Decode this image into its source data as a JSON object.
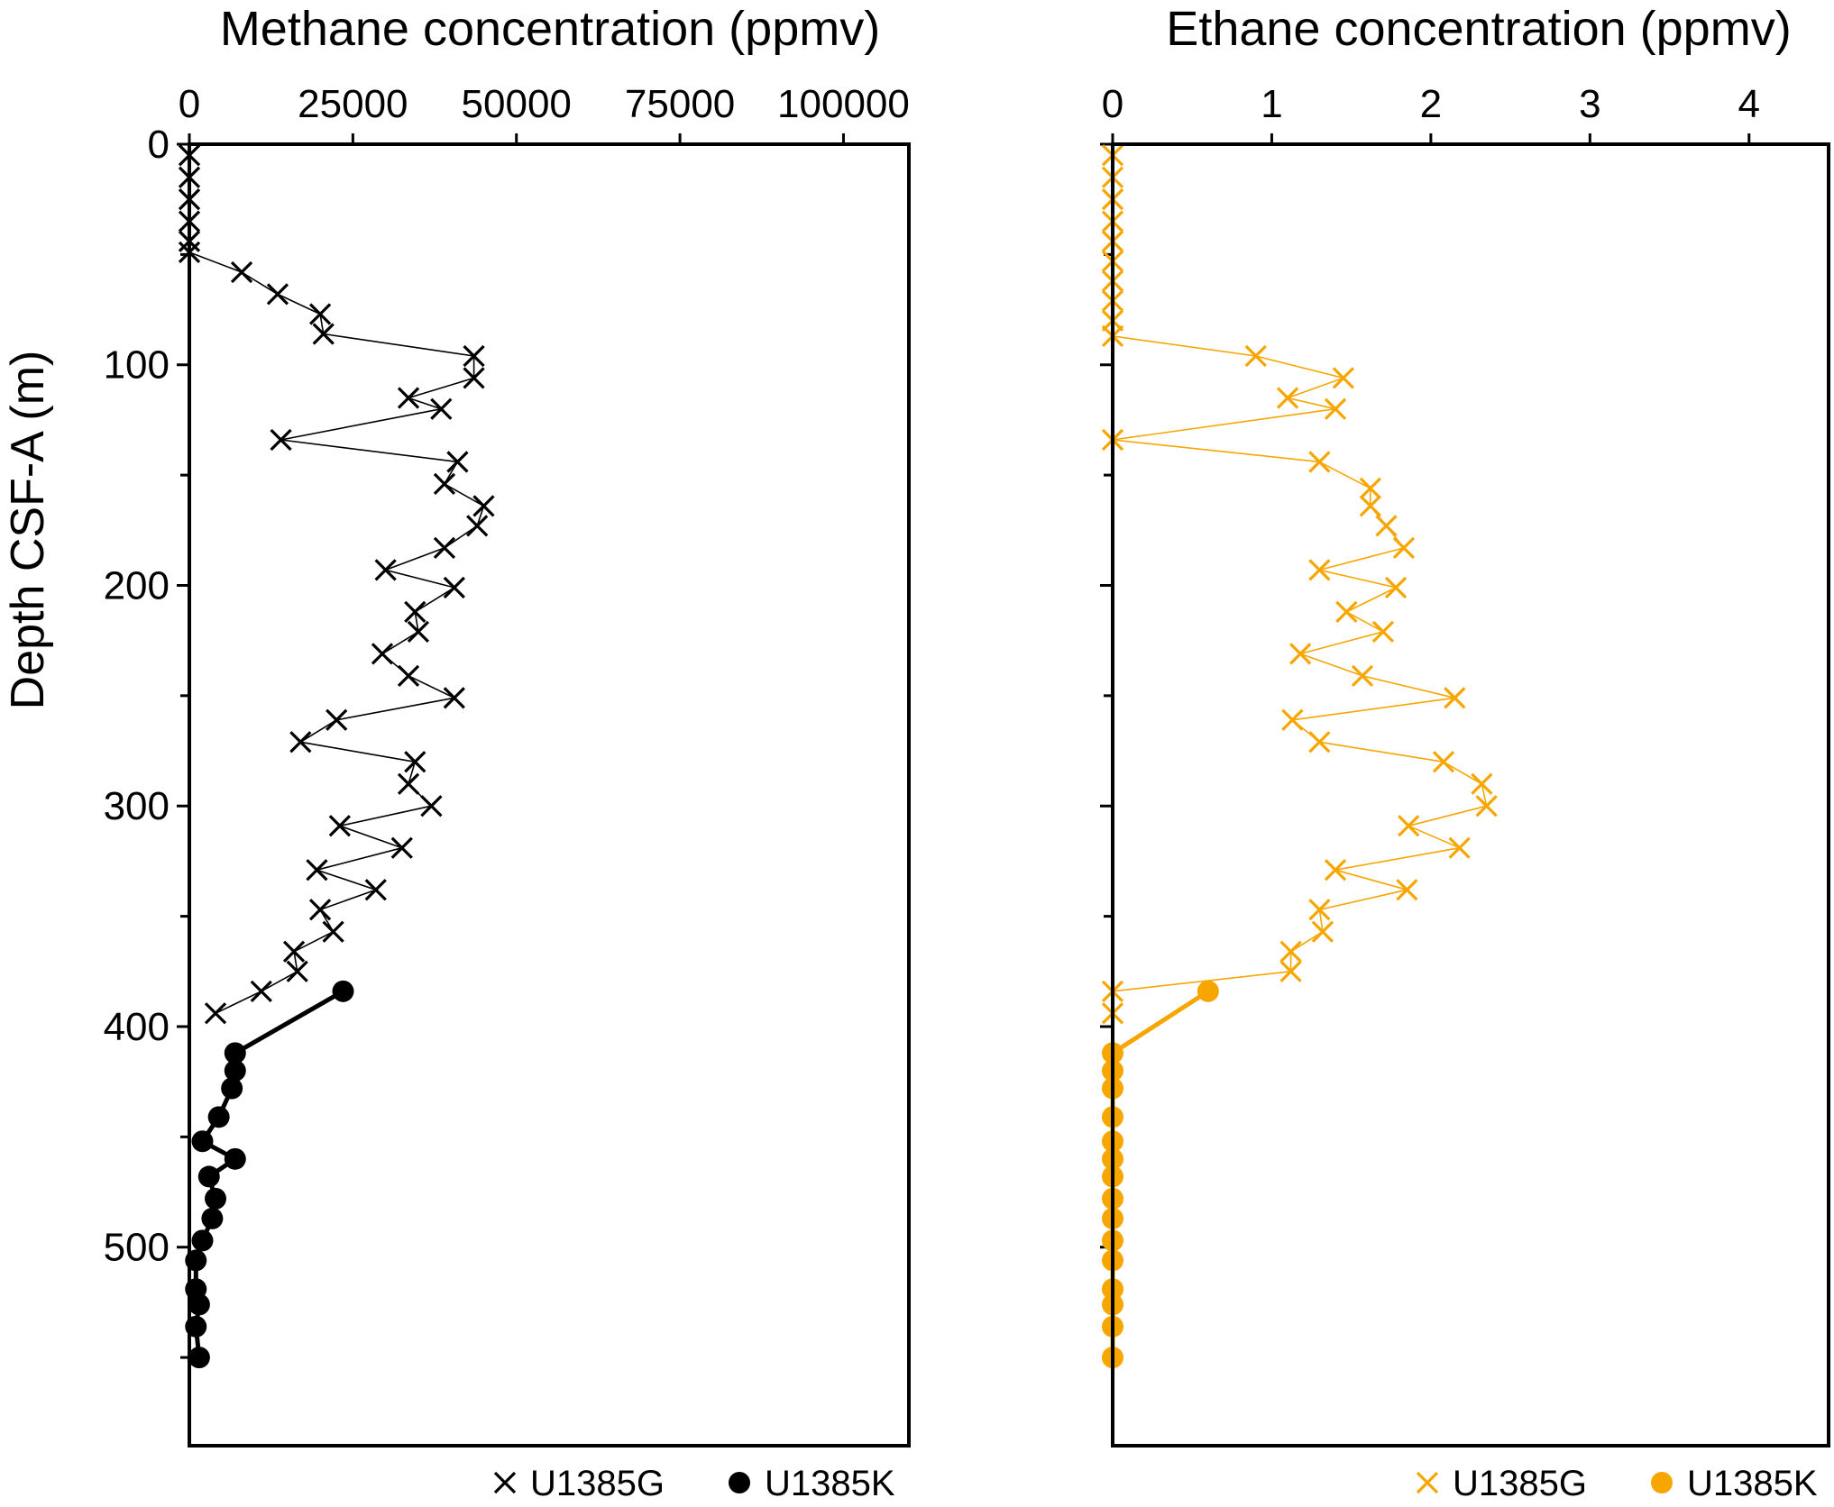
{
  "chart_data": [
    {
      "type": "scatter",
      "panel": "methane",
      "title": "Methane concentration (ppmv)",
      "xlabel": "",
      "ylabel": "Depth CSF-A (m)",
      "xlim": [
        0,
        110000
      ],
      "ylim": [
        0,
        590
      ],
      "y_inverted": true,
      "x_axis_position": "top",
      "xticks": [
        0,
        25000,
        50000,
        75000,
        100000
      ],
      "xtick_labels": [
        "0",
        "25000",
        "50000",
        "75000",
        "100000"
      ],
      "yticks": [
        0,
        100,
        200,
        300,
        400,
        500
      ],
      "ytick_labels": [
        "0",
        "100",
        "200",
        "300",
        "400",
        "500"
      ],
      "grid": false,
      "legend_position": "bottom-right",
      "series": [
        {
          "name": "U1385G",
          "marker": "x",
          "color": "#000000",
          "line": "thin",
          "points": [
            [
              0,
              5
            ],
            [
              0,
              15
            ],
            [
              0,
              25
            ],
            [
              0,
              35
            ],
            [
              0,
              44
            ],
            [
              0,
              49
            ],
            [
              8000,
              58
            ],
            [
              13500,
              68
            ],
            [
              20000,
              77
            ],
            [
              20500,
              86
            ],
            [
              43500,
              96
            ],
            [
              43500,
              106
            ],
            [
              33500,
              115
            ],
            [
              38500,
              120
            ],
            [
              14000,
              134
            ],
            [
              41000,
              144
            ],
            [
              39000,
              154
            ],
            [
              45000,
              164
            ],
            [
              44000,
              173
            ],
            [
              39000,
              183
            ],
            [
              30000,
              193
            ],
            [
              40500,
              201
            ],
            [
              34500,
              212
            ],
            [
              35000,
              221
            ],
            [
              29500,
              231
            ],
            [
              33500,
              241
            ],
            [
              40500,
              251
            ],
            [
              22500,
              261
            ],
            [
              17000,
              271
            ],
            [
              34500,
              280
            ],
            [
              33500,
              290
            ],
            [
              37000,
              300
            ],
            [
              23000,
              309
            ],
            [
              32500,
              319
            ],
            [
              19500,
              329
            ],
            [
              28500,
              338
            ],
            [
              20000,
              347
            ],
            [
              22000,
              357
            ],
            [
              16000,
              366
            ],
            [
              16500,
              375
            ],
            [
              11000,
              384
            ],
            [
              4000,
              394
            ]
          ]
        },
        {
          "name": "U1385K",
          "marker": "circle",
          "color": "#000000",
          "line": "thick",
          "points": [
            [
              23500,
              384
            ],
            [
              7000,
              412
            ],
            [
              7000,
              420
            ],
            [
              6500,
              428
            ],
            [
              4500,
              441
            ],
            [
              2000,
              452
            ],
            [
              7000,
              460
            ],
            [
              3000,
              468
            ],
            [
              4000,
              478
            ],
            [
              3500,
              487
            ],
            [
              2000,
              497
            ],
            [
              1000,
              506
            ],
            [
              1000,
              519
            ],
            [
              1500,
              526
            ],
            [
              1000,
              536
            ],
            [
              1500,
              550
            ]
          ]
        }
      ]
    },
    {
      "type": "scatter",
      "panel": "ethane",
      "title": "Ethane concentration (ppmv)",
      "xlabel": "",
      "ylabel": "",
      "xlim": [
        0,
        4.5
      ],
      "ylim": [
        0,
        590
      ],
      "y_inverted": true,
      "x_axis_position": "top",
      "xticks": [
        0,
        1,
        2,
        3,
        4
      ],
      "xtick_labels": [
        "0",
        "1",
        "2",
        "3",
        "4"
      ],
      "yticks": [
        0,
        100,
        200,
        300,
        400,
        500
      ],
      "grid": false,
      "legend_position": "bottom-right",
      "series": [
        {
          "name": "U1385G",
          "marker": "x",
          "color": "#F7A600",
          "line": "thin",
          "points": [
            [
              0,
              5
            ],
            [
              0,
              15
            ],
            [
              0,
              25
            ],
            [
              0,
              35
            ],
            [
              0,
              44
            ],
            [
              0,
              53
            ],
            [
              0,
              62
            ],
            [
              0,
              71
            ],
            [
              0,
              80
            ],
            [
              0,
              87
            ],
            [
              0.9,
              96
            ],
            [
              1.45,
              106
            ],
            [
              1.1,
              115
            ],
            [
              1.4,
              120
            ],
            [
              0,
              134
            ],
            [
              1.3,
              144
            ],
            [
              1.62,
              156
            ],
            [
              1.62,
              164
            ],
            [
              1.72,
              173
            ],
            [
              1.83,
              183
            ],
            [
              1.3,
              193
            ],
            [
              1.78,
              201
            ],
            [
              1.47,
              212
            ],
            [
              1.7,
              221
            ],
            [
              1.18,
              231
            ],
            [
              1.57,
              241
            ],
            [
              2.15,
              251
            ],
            [
              1.13,
              261
            ],
            [
              1.3,
              271
            ],
            [
              2.08,
              280
            ],
            [
              2.32,
              290
            ],
            [
              2.35,
              300
            ],
            [
              1.86,
              309
            ],
            [
              2.18,
              319
            ],
            [
              1.4,
              329
            ],
            [
              1.85,
              338
            ],
            [
              1.3,
              347
            ],
            [
              1.32,
              357
            ],
            [
              1.12,
              366
            ],
            [
              1.12,
              375
            ],
            [
              0,
              384
            ],
            [
              0,
              394
            ]
          ]
        },
        {
          "name": "U1385K",
          "marker": "circle",
          "color": "#F7A600",
          "line": "thick",
          "points": [
            [
              0.6,
              384
            ],
            [
              0,
              412
            ],
            [
              0,
              420
            ],
            [
              0,
              428
            ],
            [
              0,
              441
            ],
            [
              0,
              452
            ],
            [
              0,
              460
            ],
            [
              0,
              468
            ],
            [
              0,
              478
            ],
            [
              0,
              487
            ],
            [
              0,
              497
            ],
            [
              0,
              506
            ],
            [
              0,
              519
            ],
            [
              0,
              526
            ],
            [
              0,
              536
            ],
            [
              0,
              550
            ]
          ]
        }
      ]
    }
  ]
}
